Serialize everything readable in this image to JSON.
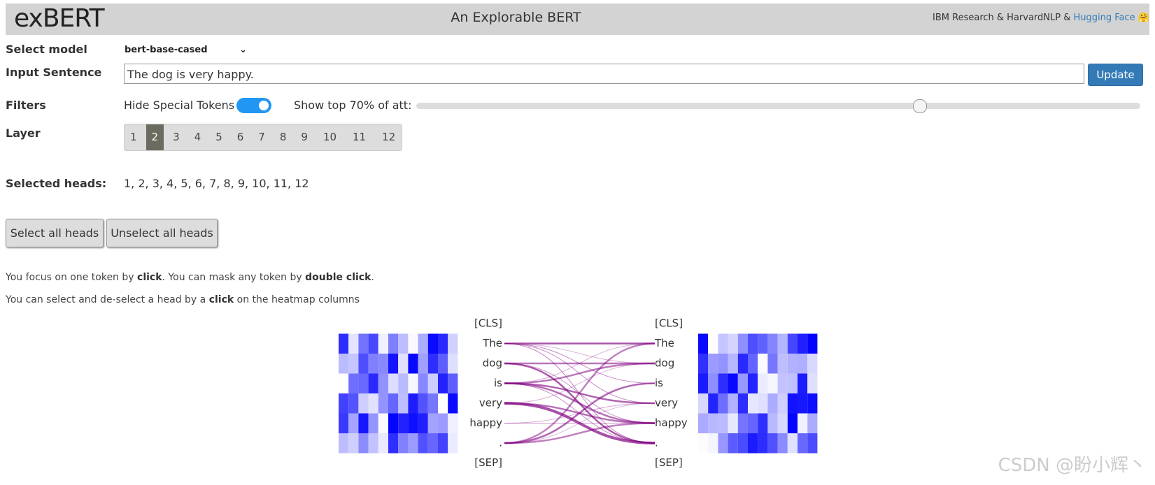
{
  "header": {
    "logo": "exBERT",
    "title": "An Explorable BERT",
    "credits": "IBM Research & HarvardNLP &",
    "link": "Hugging Face",
    "emoji": "🤗"
  },
  "controls": {
    "model_label": "Select model",
    "model": "bert-base-cased",
    "sentence_label": "Input Sentence",
    "sentence": "The dog is very happy.",
    "update": "Update",
    "filters_label": "Filters",
    "hide_special": "Hide Special Tokens",
    "show_top": "Show top 70% of att:",
    "layer_label": "Layer",
    "layers": [
      "1",
      "2",
      "3",
      "4",
      "5",
      "6",
      "7",
      "8",
      "9",
      "10",
      "11",
      "12"
    ],
    "heads_label": "Selected heads:",
    "heads": "1, 2, 3, 4, 5, 6, 7, 8, 9, 10, 11, 12",
    "select_all": "Select all heads",
    "unselect_all": "Unselect all heads"
  },
  "help": [
    [
      "You focus on one token by ",
      "click",
      ". You can mask any token by ",
      "double click",
      "."
    ],
    [
      "You can select and de-select a head by a ",
      "click",
      " on the heatmap columns"
    ]
  ],
  "tokens_left": [
    "[CLS]",
    "The",
    "dog",
    "is",
    "very",
    "happy",
    ".",
    "[SEP]"
  ],
  "tokens_right": [
    "[CLS]",
    "The",
    "dog",
    "is",
    "very",
    "happy",
    ".",
    "[SEP]"
  ],
  "watermark": "CSDN @盼小辉丶"
}
